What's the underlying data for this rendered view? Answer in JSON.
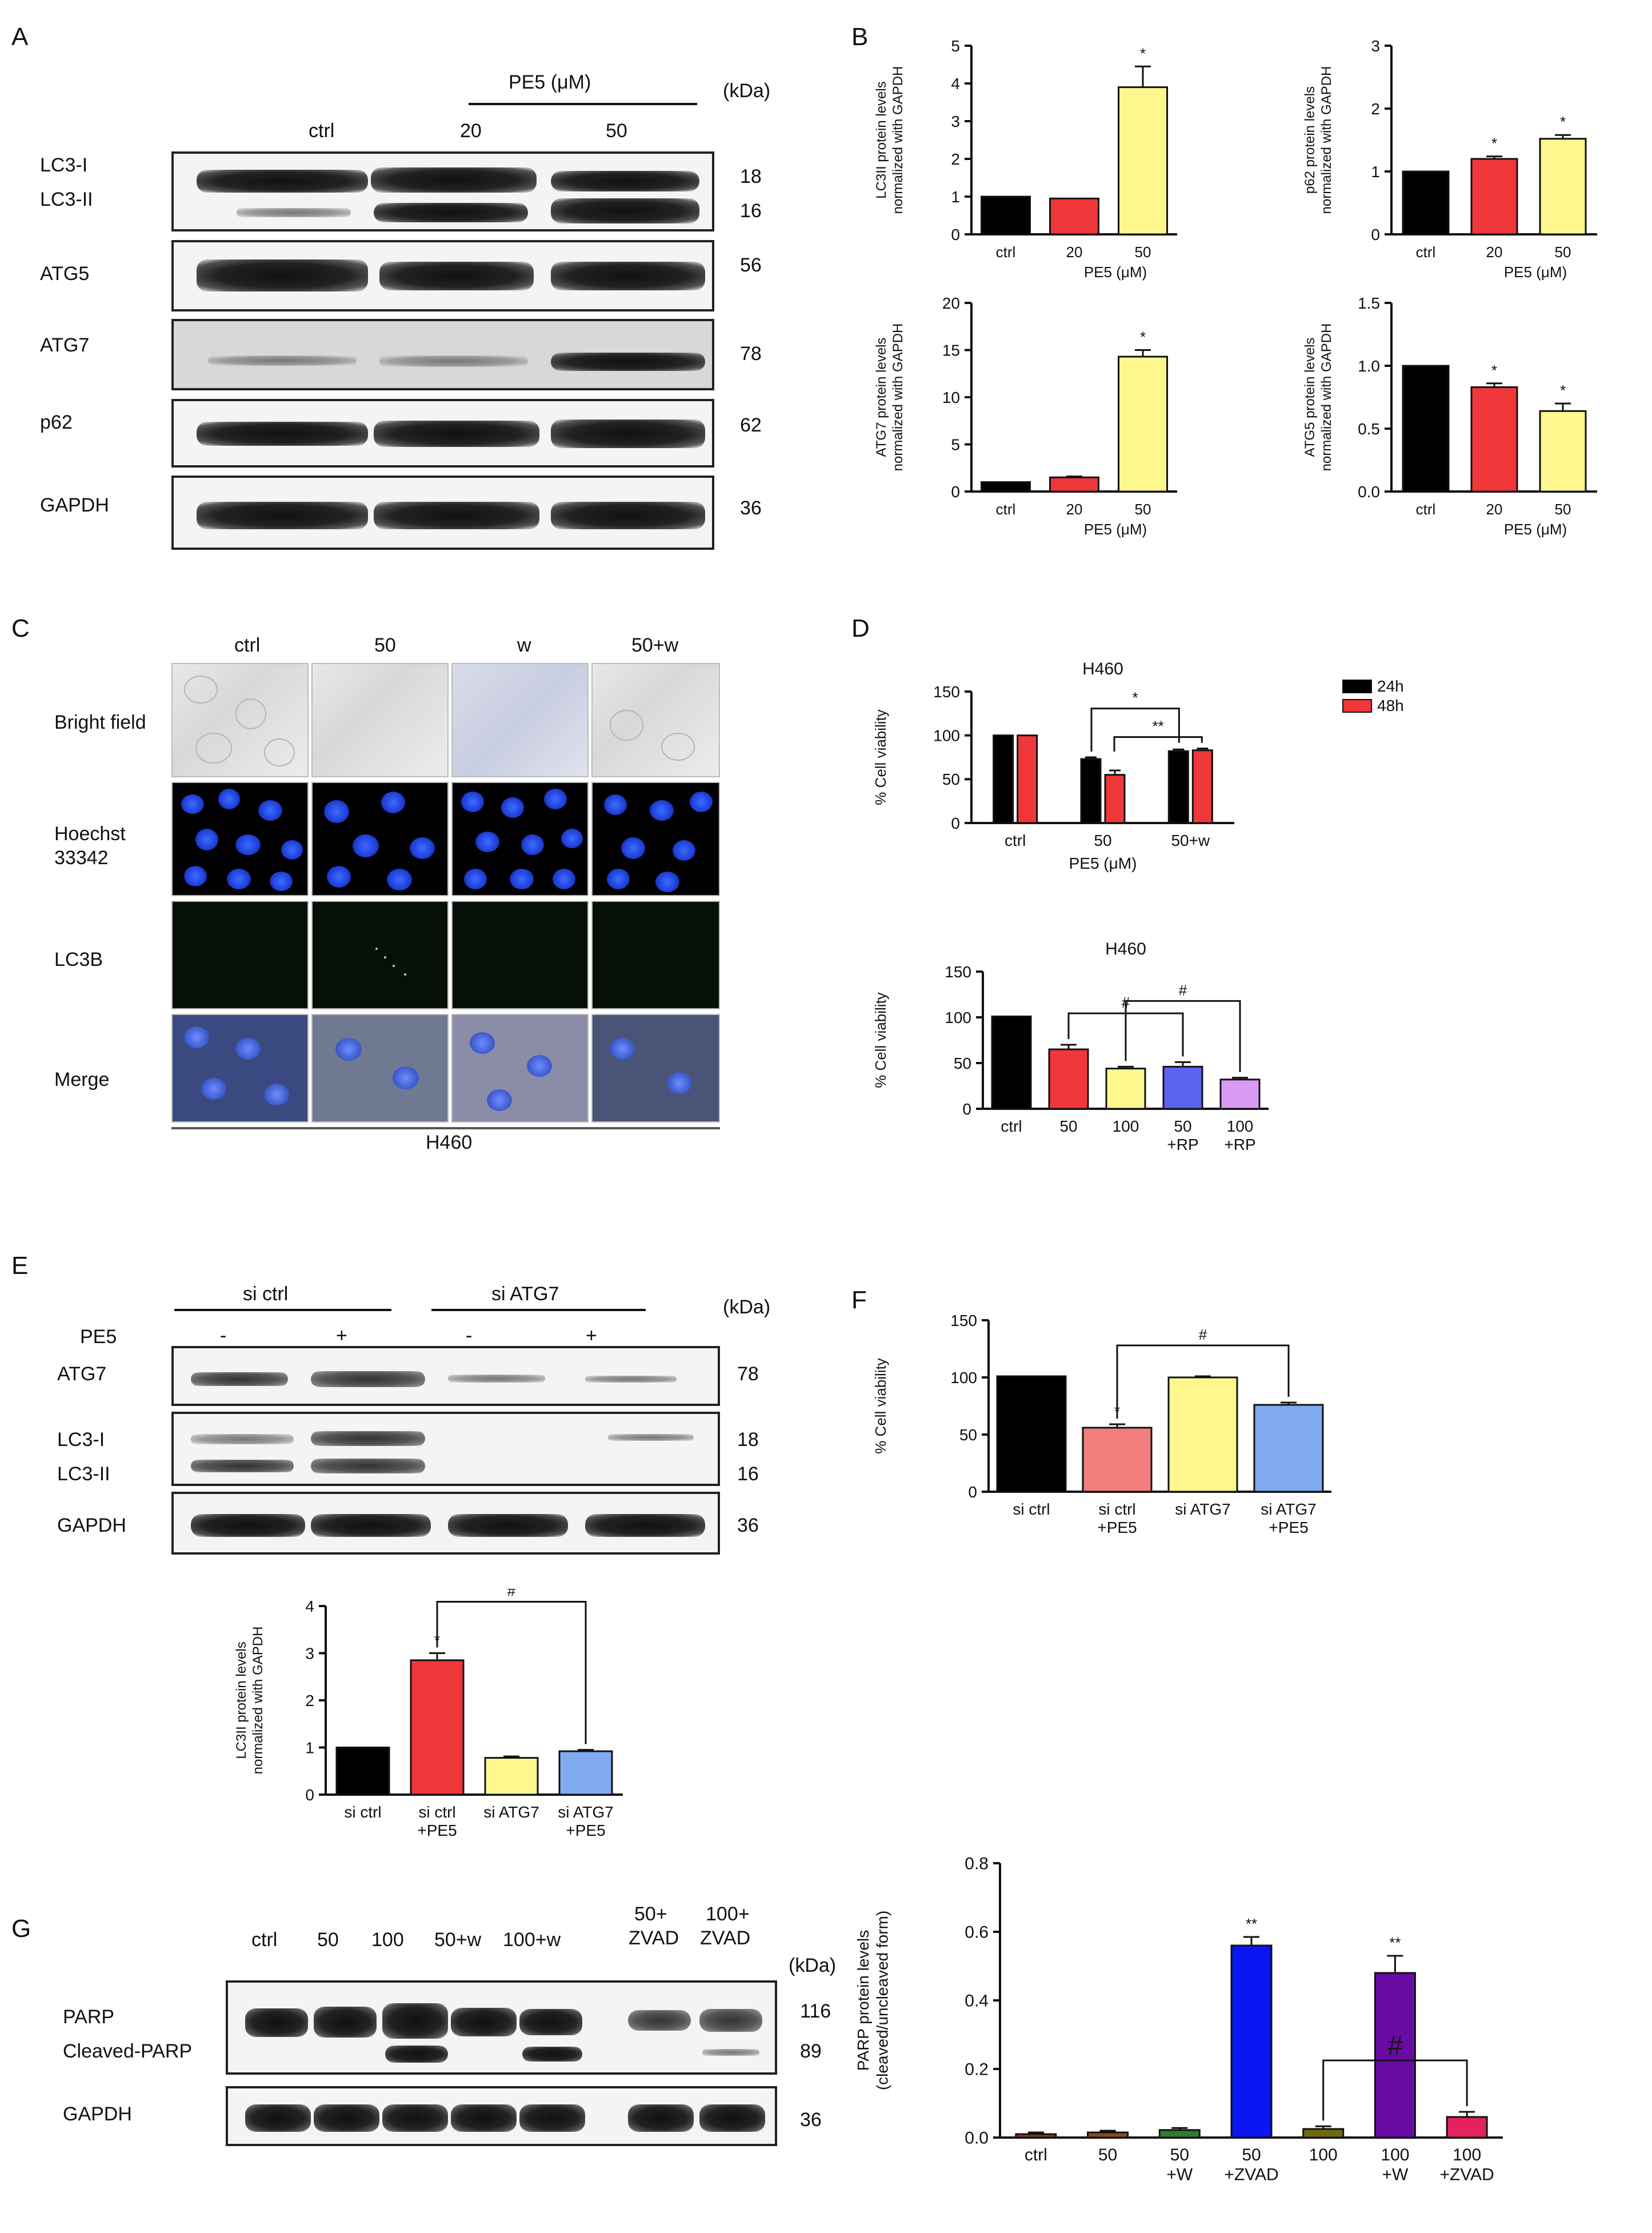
{
  "panels": {
    "A": "A",
    "B": "B",
    "C": "C",
    "D": "D",
    "E": "E",
    "F": "F",
    "G": "G"
  },
  "blotA": {
    "treatment_label": "PE5  (μM)",
    "kda_header": "(kDa)",
    "lanes": [
      "ctrl",
      "20",
      "50"
    ],
    "rows": [
      {
        "label": "LC3-I",
        "kda": "18"
      },
      {
        "label": "LC3-II",
        "kda": "16"
      },
      {
        "label": "ATG5",
        "kda": "56"
      },
      {
        "label": "ATG7",
        "kda": "78"
      },
      {
        "label": "p62",
        "kda": "62"
      },
      {
        "label": "GAPDH",
        "kda": "36"
      }
    ]
  },
  "microC": {
    "columns": [
      "ctrl",
      "50",
      "w",
      "50+w"
    ],
    "rows": [
      "Bright field",
      "Hoechst\n33342",
      "LC3B",
      "Merge"
    ],
    "hoechst_line1": "Hoechst",
    "hoechst_line2": "33342",
    "caption": "H460"
  },
  "blotE": {
    "group1": "si ctrl",
    "group2": "si ATG7",
    "kda_header": "(kDa)",
    "pe5_label": "PE5",
    "pe5_signs": [
      "-",
      "+",
      "-",
      "+"
    ],
    "rows": [
      {
        "label": "ATG7",
        "kda": "78"
      },
      {
        "label": "LC3-I",
        "kda": "18"
      },
      {
        "label": "LC3-II",
        "kda": "16"
      },
      {
        "label": "GAPDH",
        "kda": "36"
      }
    ]
  },
  "blotG": {
    "lanes": [
      "ctrl",
      "50",
      "100",
      "50+w",
      "100+w",
      "50+\nZVAD",
      "100+\nZVAD"
    ],
    "lane_line1": [
      "ctrl",
      "50",
      "100",
      "50+w",
      "100+w",
      "50+",
      "100+"
    ],
    "lane_line2": [
      "",
      "",
      "",
      "",
      "",
      "ZVAD",
      "ZVAD"
    ],
    "kda_header": "(kDa)",
    "rows": [
      {
        "label": "PARP",
        "kda": "116"
      },
      {
        "label": "Cleaved-PARP",
        "kda": "89"
      },
      {
        "label": "GAPDH",
        "kda": "36"
      }
    ]
  },
  "chart_data": [
    {
      "id": "B1",
      "type": "bar",
      "categories": [
        "ctrl",
        "20",
        "50"
      ],
      "group_label": "PE5  (μM)",
      "values": [
        1.0,
        0.95,
        3.9
      ],
      "errors": [
        0,
        0,
        0.55
      ],
      "sig": [
        "",
        "",
        "*"
      ],
      "colors": [
        "#000000",
        "#f0373a",
        "#fdf78e"
      ],
      "ylabel": "LC3II  protein levels\nnormalized  with GAPDH",
      "ylim": [
        0,
        5
      ],
      "yticks": [
        0,
        1,
        2,
        3,
        4,
        5
      ]
    },
    {
      "id": "B2",
      "type": "bar",
      "categories": [
        "ctrl",
        "20",
        "50"
      ],
      "group_label": "PE5  (μM)",
      "values": [
        1.0,
        1.2,
        1.52
      ],
      "errors": [
        0,
        0.04,
        0.06
      ],
      "sig": [
        "",
        "*",
        "*"
      ],
      "colors": [
        "#000000",
        "#f0373a",
        "#fdf78e"
      ],
      "ylabel": "p62  protein levels\nnormalized  with GAPDH",
      "ylim": [
        0,
        3
      ],
      "yticks": [
        0,
        1,
        2,
        3
      ]
    },
    {
      "id": "B3",
      "type": "bar",
      "categories": [
        "ctrl",
        "20",
        "50"
      ],
      "group_label": "PE5  (μM)",
      "values": [
        1.0,
        1.5,
        14.3
      ],
      "errors": [
        0,
        0.1,
        0.7
      ],
      "sig": [
        "",
        "",
        "*"
      ],
      "colors": [
        "#000000",
        "#f0373a",
        "#fdf78e"
      ],
      "ylabel": "ATG7  protein levels\nnormalized  with GAPDH",
      "ylim": [
        0,
        20
      ],
      "yticks": [
        0,
        5,
        10,
        15,
        20
      ]
    },
    {
      "id": "B4",
      "type": "bar",
      "categories": [
        "ctrl",
        "20",
        "50"
      ],
      "group_label": "PE5  (μM)",
      "values": [
        1.0,
        0.83,
        0.64
      ],
      "errors": [
        0,
        0.03,
        0.06
      ],
      "sig": [
        "",
        "*",
        "*"
      ],
      "colors": [
        "#000000",
        "#f0373a",
        "#fdf78e"
      ],
      "ylabel": "ATG5  protein levels\nnormalized  with GAPDH",
      "ylim": [
        0,
        1.5
      ],
      "yticks": [
        "0.0",
        "0.5",
        "1.0",
        "1.5"
      ]
    },
    {
      "id": "D1",
      "type": "bar",
      "title": "H460",
      "categories": [
        "ctrl",
        "50",
        "50+w"
      ],
      "group_label": "PE5  (μM)",
      "series": [
        {
          "name": "24h",
          "color": "#000000",
          "values": [
            100,
            73,
            82
          ],
          "errors": [
            0,
            2,
            2
          ]
        },
        {
          "name": "48h",
          "color": "#f0373a",
          "values": [
            100,
            55,
            83
          ],
          "errors": [
            0,
            5,
            2
          ]
        }
      ],
      "brackets": [
        {
          "label": "*"
        },
        {
          "label": "**"
        }
      ],
      "ylabel": "% Cell  viability",
      "ylim": [
        0,
        150
      ],
      "yticks": [
        0,
        50,
        100,
        150
      ]
    },
    {
      "id": "D2",
      "type": "bar",
      "title": "H460",
      "categories": [
        "ctrl",
        "50",
        "100",
        "50\n+RP",
        "100\n+RP"
      ],
      "values": [
        101,
        65,
        44,
        46,
        32
      ],
      "errors": [
        0,
        5,
        2,
        5,
        2
      ],
      "colors": [
        "#000000",
        "#f0373a",
        "#fdf78e",
        "#5b63f0",
        "#d99bf5"
      ],
      "brackets": [
        {
          "label": "#"
        },
        {
          "label": "#"
        }
      ],
      "ylabel": "% Cell  viability",
      "ylim": [
        0,
        150
      ],
      "yticks": [
        0,
        50,
        100,
        150
      ]
    },
    {
      "id": "F",
      "type": "bar",
      "categories": [
        "si ctrl",
        "si ctrl\n+PE5",
        "si ATG7",
        "si ATG7\n+PE5"
      ],
      "values": [
        101,
        56,
        100,
        76
      ],
      "errors": [
        0,
        3,
        1,
        2
      ],
      "sig": [
        "",
        "*",
        "",
        ""
      ],
      "colors": [
        "#000000",
        "#f37d7d",
        "#fdf78e",
        "#80aaf0"
      ],
      "brackets": [
        {
          "label": "#"
        }
      ],
      "ylabel": "% Cell  viability",
      "ylim": [
        0,
        150
      ],
      "yticks": [
        0,
        50,
        100,
        150
      ]
    },
    {
      "id": "E2",
      "type": "bar",
      "categories": [
        "si ctrl",
        "si ctrl\n+PE5",
        "si ATG7",
        "si ATG7\n+PE5"
      ],
      "values": [
        1.0,
        2.85,
        0.78,
        0.92
      ],
      "errors": [
        0,
        0.15,
        0.03,
        0.03
      ],
      "sig": [
        "",
        "*",
        "",
        ""
      ],
      "colors": [
        "#000000",
        "#f0373a",
        "#fdf78e",
        "#80aaf0"
      ],
      "brackets": [
        {
          "label": "#"
        }
      ],
      "ylabel": "LC3II  protein levels\nnormalized  with GAPDH",
      "ylim": [
        0,
        4
      ],
      "yticks": [
        0,
        1,
        2,
        3,
        4
      ]
    },
    {
      "id": "G2",
      "type": "bar",
      "categories": [
        "ctrl",
        "50",
        "100",
        "50\n+W",
        "50\n+ZVAD",
        "100\n+W",
        "100\n+ZVAD"
      ],
      "display_order": [
        "ctrl",
        "50",
        "50\n+W",
        "50\n+ZVAD",
        "100",
        "100\n+W",
        "100\n+ZVAD"
      ],
      "values": [
        0.01,
        0.015,
        0.025,
        0.022,
        0.56,
        0.48,
        0.06
      ],
      "errors": [
        0.005,
        0.005,
        0.008,
        0.006,
        0.025,
        0.05,
        0.015
      ],
      "sig": [
        "",
        "",
        "",
        "",
        "**",
        "**",
        ""
      ],
      "colors": [
        "#8b3a2a",
        "#8a4a1a",
        "#6d6a0f",
        "#2f7d2f",
        "#0b16f5",
        "#6a0aa5",
        "#e4235e"
      ],
      "brackets": [
        {
          "label": "#"
        }
      ],
      "ylabel": "PARP  protein levels\n(cleaved/uncleaved form)",
      "ylim": [
        0,
        0.8
      ],
      "yticks": [
        "0.0",
        "0.2",
        "0.4",
        "0.6",
        "0.8"
      ]
    }
  ]
}
